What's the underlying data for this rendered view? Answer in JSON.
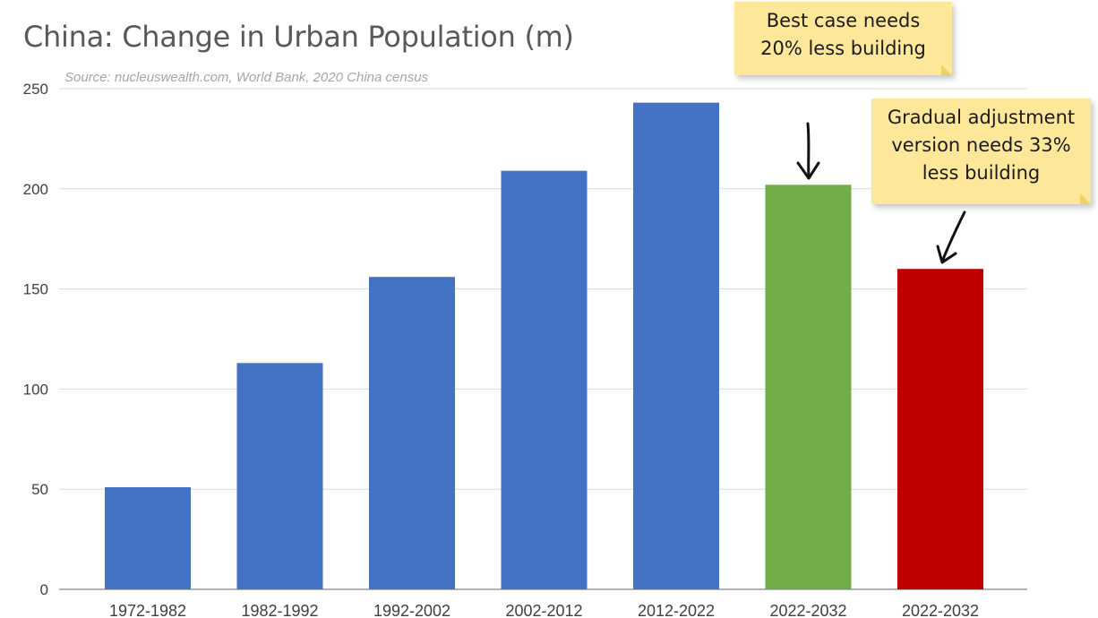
{
  "chart_data": {
    "type": "bar",
    "title": "China: Change in Urban Population (m)",
    "subtitle": "Source: nucleuswealth.com, World Bank, 2020 China census",
    "categories": [
      "1972-1982",
      "1982-1992",
      "1992-2002",
      "2002-2012",
      "2012-2022",
      "2022-2032",
      "2022-2032"
    ],
    "values": [
      51,
      113,
      156,
      209,
      243,
      202,
      160
    ],
    "bar_colors": [
      "#4472c4",
      "#4472c4",
      "#4472c4",
      "#4472c4",
      "#4472c4",
      "#70ad47",
      "#c00000"
    ],
    "ylim": [
      0,
      250
    ],
    "yticks": [
      0,
      50,
      100,
      150,
      200,
      250
    ],
    "grid": true,
    "legend": "none"
  },
  "annotations": {
    "best_case": {
      "lines": [
        "Best case needs",
        "20% less building"
      ]
    },
    "gradual": {
      "lines": [
        "Gradual adjustment",
        "version needs 33%",
        "less building"
      ]
    }
  }
}
